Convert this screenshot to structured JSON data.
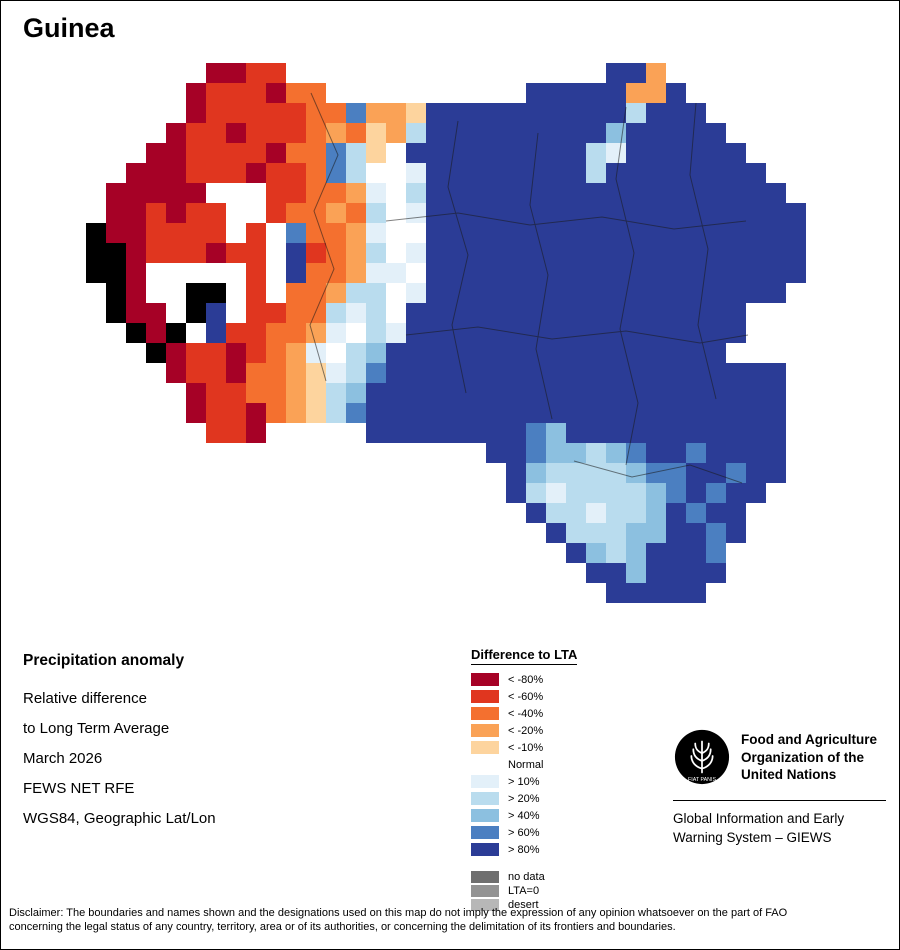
{
  "page": {
    "title": "Guinea"
  },
  "map": {
    "region_name": "Guinea",
    "cell": 20,
    "palette": {
      "A": "#a60126",
      "B": "#e0361f",
      "C": "#f4702f",
      "D": "#faa256",
      "E": "#fdd49e",
      "W": "#ffffff",
      "F": "#e3f0f9",
      "G": "#b9dcee",
      "H": "#8cc0e0",
      "I": "#4b7fc1",
      "J": "#2b3c96",
      "K": "#000000"
    },
    "grid": [
      "......AABB................JJD.......",
      ".....ABBBACC..........JJJJJDDJ......",
      ".....ABBBBBCCIDDEJJJJJJJJJJGJJJ.....",
      "....ABBABBBCDCEDGJJJJJJJJJHJJJJJ....",
      "...AABBBBACCIGEWJJJJJJJJJGFJJJJJJ...",
      "..AAABBBABBCIGWWFJJJJJJJJGJJJJJJJJ..",
      ".AAAAAWWWBBCCDFWGJJJJJJJJJJJJJJJJJJ.",
      ".AABABBWWBCCDCGWFJJJJJJJJJJJJJJJJJJJ",
      "KAABBBBWBWICCDFWWJJJJJJJJJJJJJJJJJJJ",
      "KKABBBABBWJBCDGWFJJJJJJJJJJJJJJJJJJJ",
      "KKAWWWWWBWJCCDFFWJJJJJJJJJJJJJJJJJJJ",
      ".KAWWKKWBWCCDGGWFJJJJJJJJJJJJJJJJJJ.",
      ".KAAWKJWBBCCGFGWJJJJJJJJJJJJJJJJJ...",
      "..KAKWJBBCCDFWGFJJJJJJJJJJJJJJJJJ...",
      "...KABBABCDFWGHJJJJJJJJJJJJJJJJJ....",
      "....ABBACCDEFGIJJJJJJJJJJJJJJJJJJJJ.",
      ".....ABBCCDEGHJJJJJJJJJJJJJJJJJJJJJ.",
      ".....ABBACDEGIJJJJJJJJJJJJJJJJJJJJJ.",
      "......BBA.....JJJJJJJJIHJJJJJJJJJJJ.",
      "....................JJIHHGHIJJIJJJJ.",
      ".....................JHGGGGHIIJJIJJ.",
      ".....................JGFGGGGHIJIJJ..",
      "......................JGGFGGHJIJJ...",
      ".......................JGGGHHJJIJ...",
      "........................JHGHJJJI....",
      ".........................JJHJJJJ....",
      "..........................JJJJJ....."
    ]
  },
  "legend": {
    "title": "Difference to LTA",
    "items": [
      {
        "label": "< -80%",
        "color": "#a60126"
      },
      {
        "label": "< -60%",
        "color": "#e0361f"
      },
      {
        "label": "< -40%",
        "color": "#f4702f"
      },
      {
        "label": "< -20%",
        "color": "#faa256"
      },
      {
        "label": "< -10%",
        "color": "#fdd49e"
      },
      {
        "label": "Normal",
        "color": "#ffffff"
      },
      {
        "label": "> 10%",
        "color": "#e3f0f9"
      },
      {
        "label": "> 20%",
        "color": "#b9dcee"
      },
      {
        "label": "> 40%",
        "color": "#8cc0e0"
      },
      {
        "label": "> 60%",
        "color": "#4b7fc1"
      },
      {
        "label": "> 80%",
        "color": "#2b3c96"
      }
    ],
    "extra_items": [
      {
        "label": "no data",
        "color": "#6f6f6f"
      },
      {
        "label": "LTA=0",
        "color": "#939393"
      },
      {
        "label": "desert",
        "color": "#b7b7b7"
      }
    ]
  },
  "info": {
    "heading": "Precipitation anomaly",
    "lines": [
      "Relative difference",
      "to Long Term Average",
      "March 2026",
      "FEWS NET RFE",
      "WGS84, Geographic Lat/Lon"
    ]
  },
  "fao": {
    "motto": "FIAT PANIS",
    "org_lines": [
      "Food and Agriculture",
      "Organization of the",
      "United Nations"
    ],
    "giews_lines": [
      "Global Information and Early",
      "Warning System – GIEWS"
    ]
  },
  "disclaimer": {
    "line1": "Disclaimer: The boundaries and names shown and the designations used on this map do not imply the expression of any opinion whatsoever on the part of FAO",
    "line2": "concerning the legal status of any country, territory, area or of its authorities, or concerning the delimitation of its frontiers and boundaries."
  }
}
